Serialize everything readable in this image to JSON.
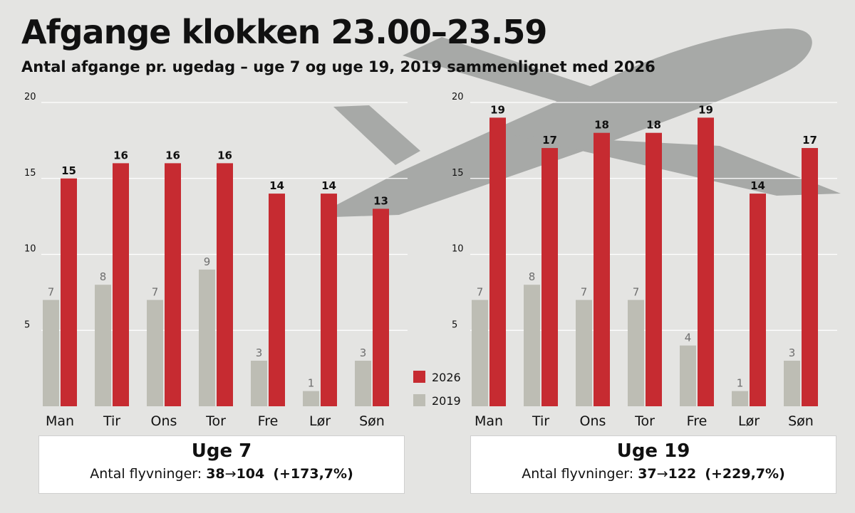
{
  "title": "Afgange klokken 23.00–23.59",
  "subtitle": "Antal afgange pr. ugedag – uge 7 og uge 19, 2019 sammenlignet med 2026",
  "colors": {
    "s2026": "#c62b31",
    "s2019": "#bdbdb4",
    "plane": "#a7a9a7",
    "background": "#e4e4e2"
  },
  "legend": [
    "2026",
    "2019"
  ],
  "chart_data": [
    {
      "type": "bar",
      "categories": [
        "Man",
        "Tir",
        "Ons",
        "Tor",
        "Fre",
        "Lør",
        "Søn"
      ],
      "series": [
        {
          "name": "2019",
          "values": [
            7,
            8,
            7,
            9,
            3,
            1,
            3
          ]
        },
        {
          "name": "2026",
          "values": [
            15,
            16,
            16,
            16,
            14,
            14,
            13
          ]
        }
      ],
      "yticks": [
        5,
        10,
        15,
        20
      ],
      "ylim": [
        0,
        20
      ],
      "grid": true,
      "legend_position": "right",
      "summary": {
        "week": "Uge 7",
        "label": "Antal flyvninger:",
        "from": "38",
        "arrow": "→",
        "to": "104",
        "change": "(+173,7%)"
      }
    },
    {
      "type": "bar",
      "categories": [
        "Man",
        "Tir",
        "Ons",
        "Tor",
        "Fre",
        "Lør",
        "Søn"
      ],
      "series": [
        {
          "name": "2019",
          "values": [
            7,
            8,
            7,
            7,
            4,
            1,
            3
          ]
        },
        {
          "name": "2026",
          "values": [
            19,
            17,
            18,
            18,
            19,
            14,
            17
          ]
        }
      ],
      "yticks": [
        5,
        10,
        15,
        20
      ],
      "ylim": [
        0,
        20
      ],
      "grid": true,
      "summary": {
        "week": "Uge 19",
        "label": "Antal flyvninger:",
        "from": "37",
        "arrow": "→",
        "to": "122",
        "change": "(+229,7%)"
      }
    }
  ]
}
